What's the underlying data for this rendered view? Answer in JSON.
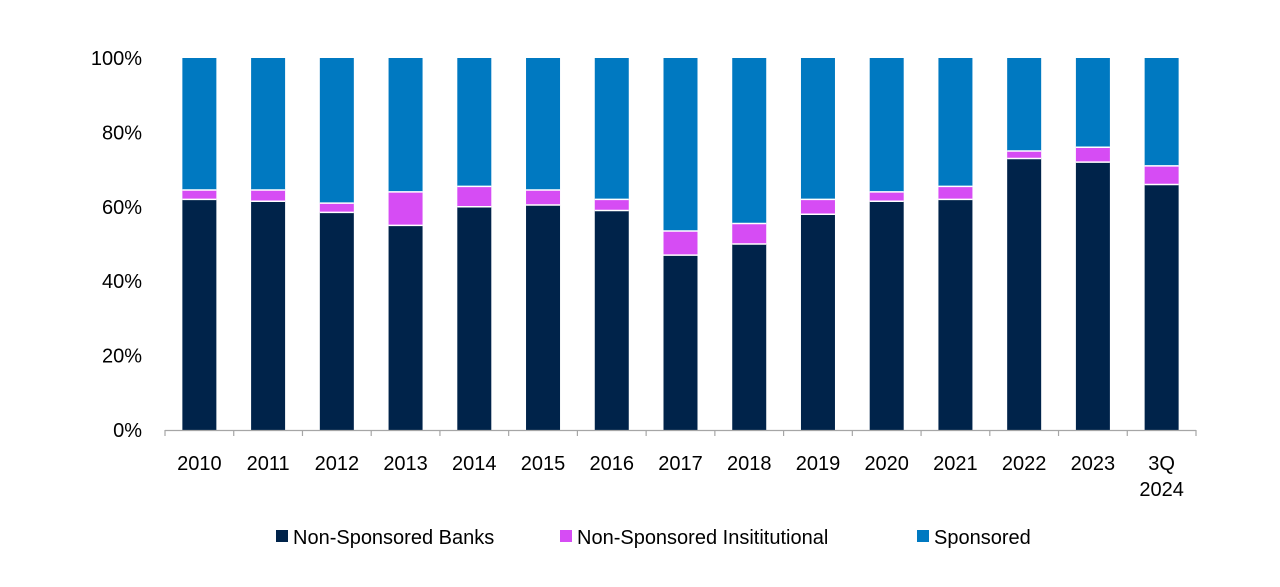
{
  "chart_data": {
    "type": "bar",
    "stacked": true,
    "categories": [
      [
        "2010"
      ],
      [
        "2011"
      ],
      [
        "2012"
      ],
      [
        "2013"
      ],
      [
        "2014"
      ],
      [
        "2015"
      ],
      [
        "2016"
      ],
      [
        "2017"
      ],
      [
        "2018"
      ],
      [
        "2019"
      ],
      [
        "2020"
      ],
      [
        "2021"
      ],
      [
        "2022"
      ],
      [
        "2023"
      ],
      [
        "3Q",
        "2024"
      ]
    ],
    "series": [
      {
        "name": "Non-Sponsored Banks",
        "color": "#00234a",
        "values": [
          62,
          61.5,
          58.5,
          55,
          60,
          60.5,
          59,
          47,
          50,
          58,
          61.5,
          62,
          73,
          72,
          66
        ]
      },
      {
        "name": "Non-Sponsored Insititutional",
        "color": "#d64cf4",
        "values": [
          2.5,
          3,
          2.5,
          9,
          5.5,
          4,
          3,
          6.5,
          5.5,
          4,
          2.5,
          3.5,
          2,
          4,
          5
        ]
      },
      {
        "name": "Sponsored",
        "color": "#0079c1",
        "values": [
          35.5,
          35.5,
          39,
          36,
          34.5,
          35.5,
          38,
          46.5,
          44.5,
          38,
          36,
          34.5,
          25,
          24,
          29
        ]
      }
    ],
    "yticks": [
      "0%",
      "20%",
      "40%",
      "60%",
      "80%",
      "100%"
    ],
    "ylim": [
      0,
      100
    ],
    "grid": false,
    "legend_position": "bottom"
  }
}
